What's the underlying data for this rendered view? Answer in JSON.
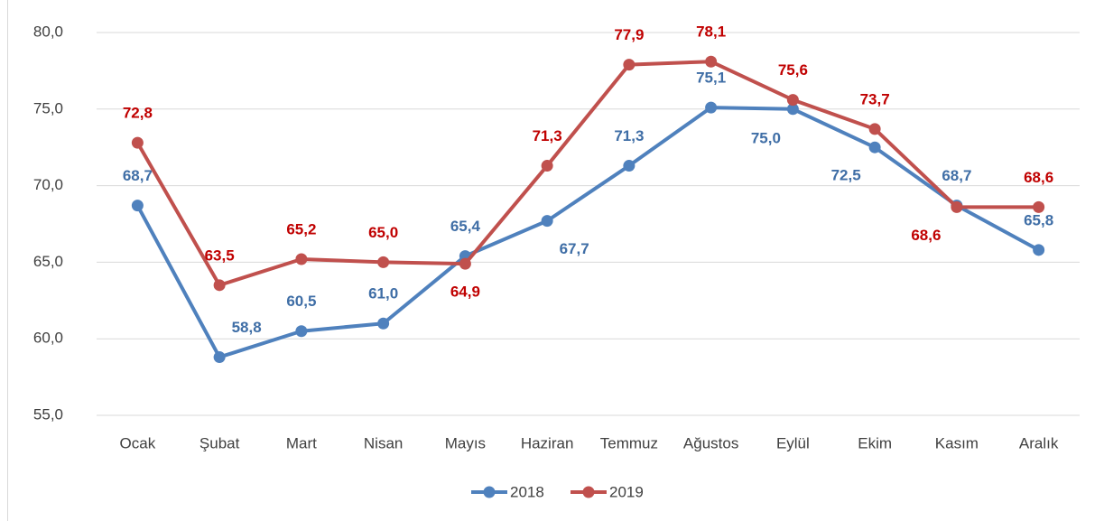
{
  "chart_data": {
    "type": "line",
    "categories": [
      "Ocak",
      "Şubat",
      "Mart",
      "Nisan",
      "Mayıs",
      "Haziran",
      "Temmuz",
      "Ağustos",
      "Eylül",
      "Ekim",
      "Kasım",
      "Aralık"
    ],
    "series": [
      {
        "name": "2018",
        "color": "#4f81bd",
        "label_color": "#3f6ea6",
        "values": [
          68.7,
          58.8,
          60.5,
          61.0,
          65.4,
          67.7,
          71.3,
          75.1,
          75.0,
          72.5,
          68.7,
          65.8
        ],
        "value_labels": [
          "68,7",
          "58,8",
          "60,5",
          "61,0",
          "65,4",
          "67,7",
          "71,3",
          "75,1",
          "75,0",
          "72,5",
          "68,7",
          "65,8"
        ]
      },
      {
        "name": "2019",
        "color": "#c0504d",
        "label_color": "#c00000",
        "values": [
          72.8,
          63.5,
          65.2,
          65.0,
          64.9,
          71.3,
          77.9,
          78.1,
          75.6,
          73.7,
          68.6,
          68.6
        ],
        "value_labels": [
          "72,8",
          "63,5",
          "65,2",
          "65,0",
          "64,9",
          "71,3",
          "77,9",
          "78,1",
          "75,6",
          "73,7",
          "68,6",
          "68,6"
        ]
      }
    ],
    "ylim": [
      55,
      80
    ],
    "yticks": [
      {
        "value": 55,
        "label": "55,0"
      },
      {
        "value": 60,
        "label": "60,0"
      },
      {
        "value": 65,
        "label": "65,0"
      },
      {
        "value": 70,
        "label": "70,0"
      },
      {
        "value": 75,
        "label": "75,0"
      },
      {
        "value": 80,
        "label": "80,0"
      }
    ],
    "grid": true,
    "legend": "bottom"
  }
}
